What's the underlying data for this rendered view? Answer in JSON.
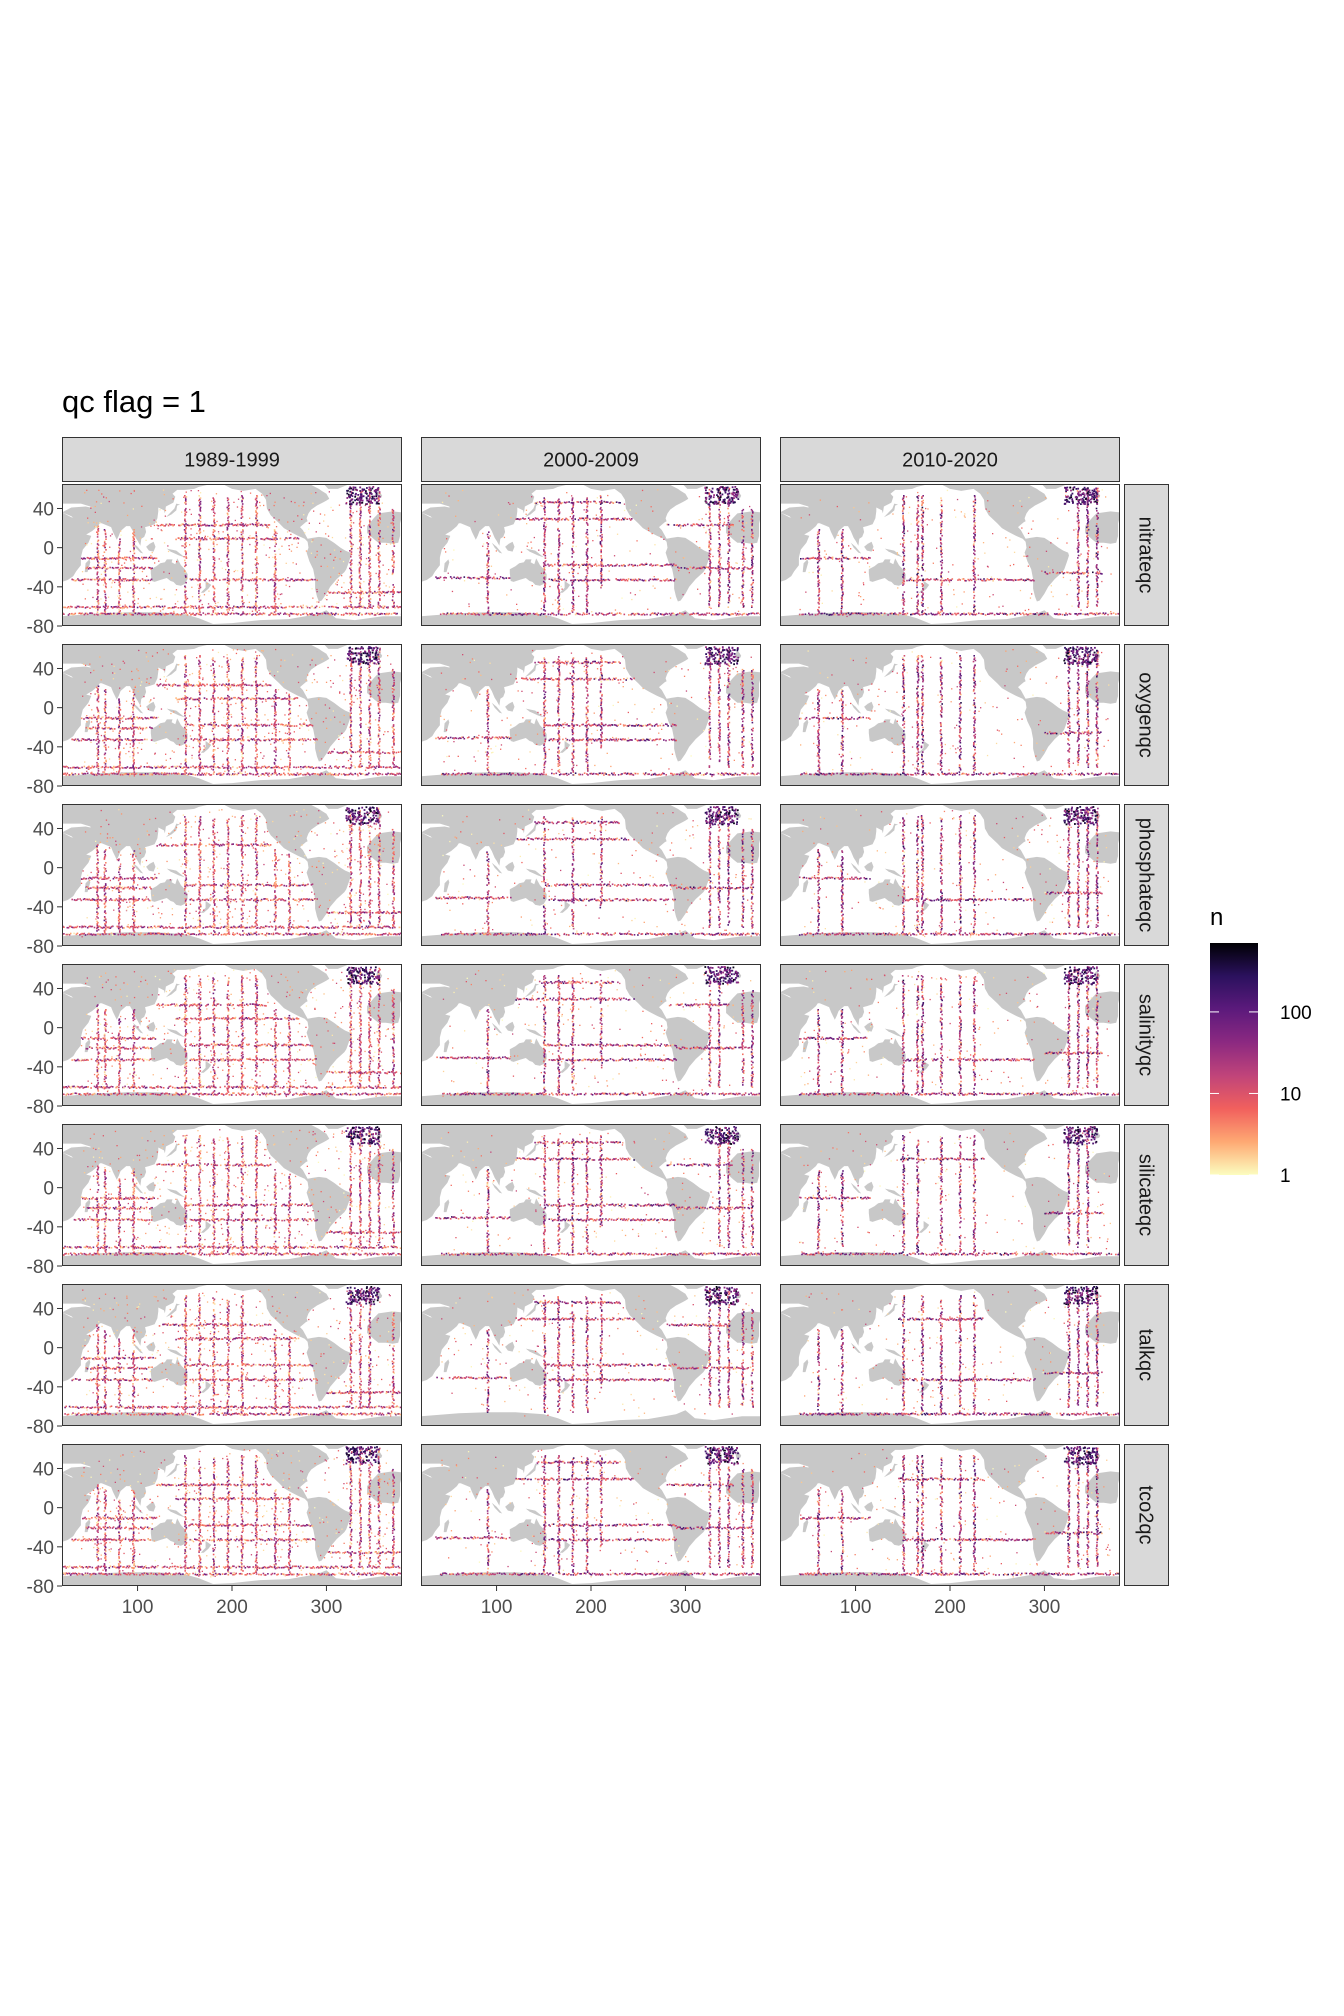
{
  "chart_data": {
    "type": "heatmap",
    "title": "qc flag = 1",
    "xlabel": "",
    "ylabel": "",
    "xlim": [
      20,
      380
    ],
    "ylim": [
      -80,
      65
    ],
    "x_ticks": [
      "100",
      "200",
      "300"
    ],
    "x_tick_values": [
      100,
      200,
      300
    ],
    "y_ticks": [
      "40",
      "0",
      "-40",
      "-80"
    ],
    "y_tick_values": [
      40,
      0,
      -40,
      -80
    ],
    "facet_columns": [
      "1989-1999",
      "2000-2009",
      "2010-2020"
    ],
    "facet_rows": [
      "nitrateqc",
      "oxygenqc",
      "phosphateqc",
      "salinityqc",
      "silicateqc",
      "talkqc",
      "tco2qc"
    ],
    "legend": {
      "title": "n",
      "scale": "log10",
      "labels": [
        "1",
        "10",
        "100"
      ],
      "label_values": [
        1,
        10,
        100
      ],
      "max": 700,
      "colors": [
        "#fcfdbf",
        "#fea973",
        "#f1605d",
        "#c0447a",
        "#8c2981",
        "#5c1a7c",
        "#2b115e",
        "#000004"
      ],
      "position": "right"
    },
    "grid": true,
    "land_color": "#c8c8c8",
    "ocean_color": "#ffffff",
    "panel_background": "#ebebeb",
    "strip_color": "#d9d9d9"
  }
}
